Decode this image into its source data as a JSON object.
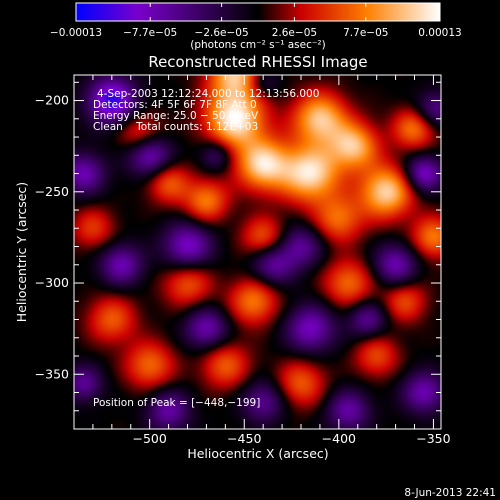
{
  "chart_data": {
    "type": "heatmap",
    "title": "Reconstructed RHESSI Image",
    "xlabel": "Heliocentric X (arcsec)",
    "ylabel": "Heliocentric Y (arcsec)",
    "xlim": [
      -540,
      -346
    ],
    "ylim": [
      -380,
      -186
    ],
    "xticks": [
      {
        "value": -500,
        "label": "−500"
      },
      {
        "value": -450,
        "label": "−450"
      },
      {
        "value": -400,
        "label": "−400"
      },
      {
        "value": -350,
        "label": "−350"
      }
    ],
    "yticks": [
      {
        "value": -200,
        "label": "−200"
      },
      {
        "value": -250,
        "label": "−250"
      },
      {
        "value": -300,
        "label": "−300"
      },
      {
        "value": -350,
        "label": "−350"
      }
    ],
    "colorbar": {
      "range": [
        -0.00013,
        0.00013
      ],
      "ticks": [
        {
          "value": -0.00013,
          "label": "−0.00013"
        },
        {
          "value": -7.7e-05,
          "label": "−7.7e−05"
        },
        {
          "value": -2.6e-05,
          "label": "−2.6e−05"
        },
        {
          "value": 2.6e-05,
          "label": "2.6e−05"
        },
        {
          "value": 7.7e-05,
          "label": "7.7e−05"
        },
        {
          "value": 0.00013,
          "label": "0.00013"
        }
      ],
      "units_label": "(photons cm⁻² s⁻¹ asec⁻²)",
      "colors": [
        "#0000ff",
        "#7a00cc",
        "#000000",
        "#cc0000",
        "#ff7f00",
        "#ffffff"
      ]
    },
    "annotations": {
      "time": "4-Sep-2003 12:12:24.000 to 12:13:56.000",
      "detectors": "Detectors: 4F 5F 6F 7F 8F Att 0",
      "energy": "Energy Range: 25.0 − 50.0 keV",
      "clean": "Clean    Total counts: 1.12E+03",
      "peak": "Position of Peak = [−448,−199]"
    },
    "peak": {
      "x": -448,
      "y": -199
    },
    "image_components": [
      {
        "x": -455,
        "y": -210,
        "sigma": 11,
        "amp": 1.0
      },
      {
        "x": -410,
        "y": -210,
        "sigma": 10,
        "amp": 0.85
      },
      {
        "x": -392,
        "y": -225,
        "sigma": 9,
        "amp": 0.8
      },
      {
        "x": -440,
        "y": -235,
        "sigma": 10,
        "amp": 0.9
      },
      {
        "x": -415,
        "y": -240,
        "sigma": 11,
        "amp": 0.95
      },
      {
        "x": -375,
        "y": -250,
        "sigma": 10,
        "amp": 0.9
      },
      {
        "x": -360,
        "y": -215,
        "sigma": 8,
        "amp": 0.6
      },
      {
        "x": -470,
        "y": -255,
        "sigma": 8,
        "amp": 0.6
      },
      {
        "x": -490,
        "y": -245,
        "sigma": 8,
        "amp": 0.5
      },
      {
        "x": -350,
        "y": -275,
        "sigma": 8,
        "amp": 0.6
      },
      {
        "x": -400,
        "y": -265,
        "sigma": 9,
        "amp": 0.55
      },
      {
        "x": -440,
        "y": -275,
        "sigma": 8,
        "amp": 0.5
      },
      {
        "x": -505,
        "y": -218,
        "sigma": 8,
        "amp": 0.45
      },
      {
        "x": -480,
        "y": -300,
        "sigma": 9,
        "amp": 0.5
      },
      {
        "x": -445,
        "y": -310,
        "sigma": 9,
        "amp": 0.6
      },
      {
        "x": -395,
        "y": -300,
        "sigma": 9,
        "amp": 0.55
      },
      {
        "x": -365,
        "y": -310,
        "sigma": 8,
        "amp": 0.45
      },
      {
        "x": -520,
        "y": -320,
        "sigma": 9,
        "amp": 0.5
      },
      {
        "x": -500,
        "y": -345,
        "sigma": 9,
        "amp": 0.55
      },
      {
        "x": -460,
        "y": -345,
        "sigma": 9,
        "amp": 0.5
      },
      {
        "x": -420,
        "y": -355,
        "sigma": 9,
        "amp": 0.5
      },
      {
        "x": -380,
        "y": -340,
        "sigma": 8,
        "amp": 0.45
      },
      {
        "x": -530,
        "y": -270,
        "sigma": 8,
        "amp": 0.4
      },
      {
        "x": -455,
        "y": -185,
        "sigma": 10,
        "amp": 0.8
      },
      {
        "x": -520,
        "y": -200,
        "sigma": 9,
        "amp": -0.9
      },
      {
        "x": -500,
        "y": -230,
        "sigma": 8,
        "amp": -0.7
      },
      {
        "x": -535,
        "y": -240,
        "sigma": 8,
        "amp": -0.6
      },
      {
        "x": -480,
        "y": -280,
        "sigma": 9,
        "amp": -0.7
      },
      {
        "x": -515,
        "y": -290,
        "sigma": 8,
        "amp": -0.6
      },
      {
        "x": -435,
        "y": -290,
        "sigma": 8,
        "amp": -0.55
      },
      {
        "x": -420,
        "y": -280,
        "sigma": 8,
        "amp": -0.5
      },
      {
        "x": -370,
        "y": -290,
        "sigma": 8,
        "amp": -0.6
      },
      {
        "x": -355,
        "y": -240,
        "sigma": 7,
        "amp": -0.7
      },
      {
        "x": -350,
        "y": -205,
        "sigma": 7,
        "amp": -0.5
      },
      {
        "x": -470,
        "y": -325,
        "sigma": 8,
        "amp": -0.6
      },
      {
        "x": -415,
        "y": -325,
        "sigma": 9,
        "amp": -0.65
      },
      {
        "x": -385,
        "y": -320,
        "sigma": 7,
        "amp": -0.5
      },
      {
        "x": -490,
        "y": -370,
        "sigma": 8,
        "amp": -0.55
      },
      {
        "x": -440,
        "y": -365,
        "sigma": 8,
        "amp": -0.5
      },
      {
        "x": -395,
        "y": -370,
        "sigma": 8,
        "amp": -0.55
      },
      {
        "x": -355,
        "y": -360,
        "sigma": 8,
        "amp": -0.6
      },
      {
        "x": -535,
        "y": -355,
        "sigma": 7,
        "amp": -0.5
      },
      {
        "x": -465,
        "y": -230,
        "sigma": 6,
        "amp": -0.4
      },
      {
        "x": -440,
        "y": -190,
        "sigma": 6,
        "amp": -0.35
      }
    ]
  },
  "footer": {
    "date": "8-Jun-2013 22:41"
  }
}
